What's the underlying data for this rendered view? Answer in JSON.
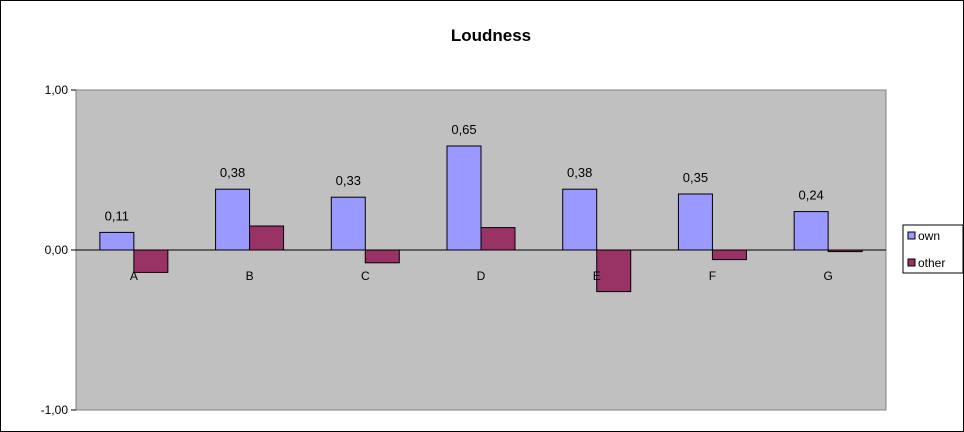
{
  "chart_data": {
    "type": "bar",
    "title": "Loudness",
    "categories": [
      "A",
      "B",
      "C",
      "D",
      "E",
      "F",
      "G"
    ],
    "series": [
      {
        "name": "own",
        "values": [
          0.11,
          0.38,
          0.33,
          0.65,
          0.38,
          0.35,
          0.24
        ],
        "color": "#9999ff",
        "data_labels": [
          "0,11",
          "0,38",
          "0,33",
          "0,65",
          "0,38",
          "0,35",
          "0,24"
        ]
      },
      {
        "name": "other",
        "values": [
          -0.14,
          0.15,
          -0.08,
          0.14,
          -0.26,
          -0.06,
          -0.01
        ],
        "color": "#993366"
      }
    ],
    "ylim": [
      -1,
      1
    ],
    "yticks": [
      1,
      0,
      -1
    ],
    "ytick_labels": [
      "1,00",
      "0,00",
      "-1,00"
    ],
    "plot_background": "#c0c0c0",
    "grid": false,
    "legend_position": "right"
  }
}
